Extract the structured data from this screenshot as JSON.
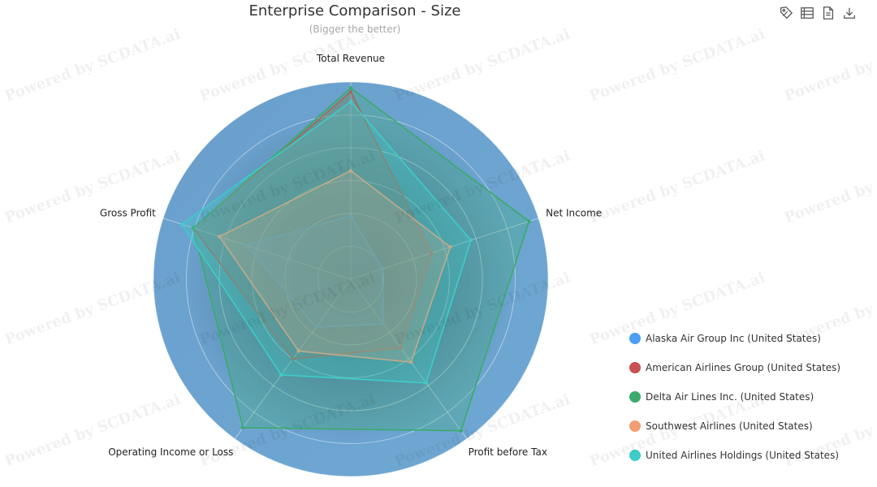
{
  "header": {
    "title": "Enterprise Comparison - Size",
    "subtitle": "(Bigger the better)"
  },
  "toolbar": {
    "tools": [
      {
        "icon": "tag-icon"
      },
      {
        "icon": "data-view-icon"
      },
      {
        "icon": "document-icon"
      },
      {
        "icon": "download-icon"
      }
    ]
  },
  "watermark": "Powered by SCDATA.ai",
  "chart_data": {
    "type": "radar",
    "title": "Enterprise Comparison - Size",
    "subtitle": "(Bigger the better)",
    "indicators": [
      "Total Revenue",
      "Net Income",
      "Profit before Tax",
      "Operating Income or Loss",
      "Gross Profit"
    ],
    "max": 100,
    "rings": 6,
    "series": [
      {
        "name": "Alaska Air Group Inc (United States)",
        "color": "#4a9ef5",
        "values": [
          32,
          17,
          28,
          30,
          56
        ]
      },
      {
        "name": "American Airlines Group (United States)",
        "color": "#c95050",
        "values": [
          95,
          43,
          43,
          50,
          84
        ]
      },
      {
        "name": "Delta Air Lines Inc. (United States)",
        "color": "#3aab6a",
        "values": [
          97,
          95,
          95,
          93,
          84
        ]
      },
      {
        "name": "Southwest Airlines (United States)",
        "color": "#f29e74",
        "values": [
          55,
          53,
          52,
          45,
          70
        ]
      },
      {
        "name": "United Airlines Holdings (United States)",
        "color": "#3ccdc8",
        "values": [
          90,
          64,
          65,
          60,
          90
        ]
      }
    ],
    "legend_position": "bottom-right"
  }
}
